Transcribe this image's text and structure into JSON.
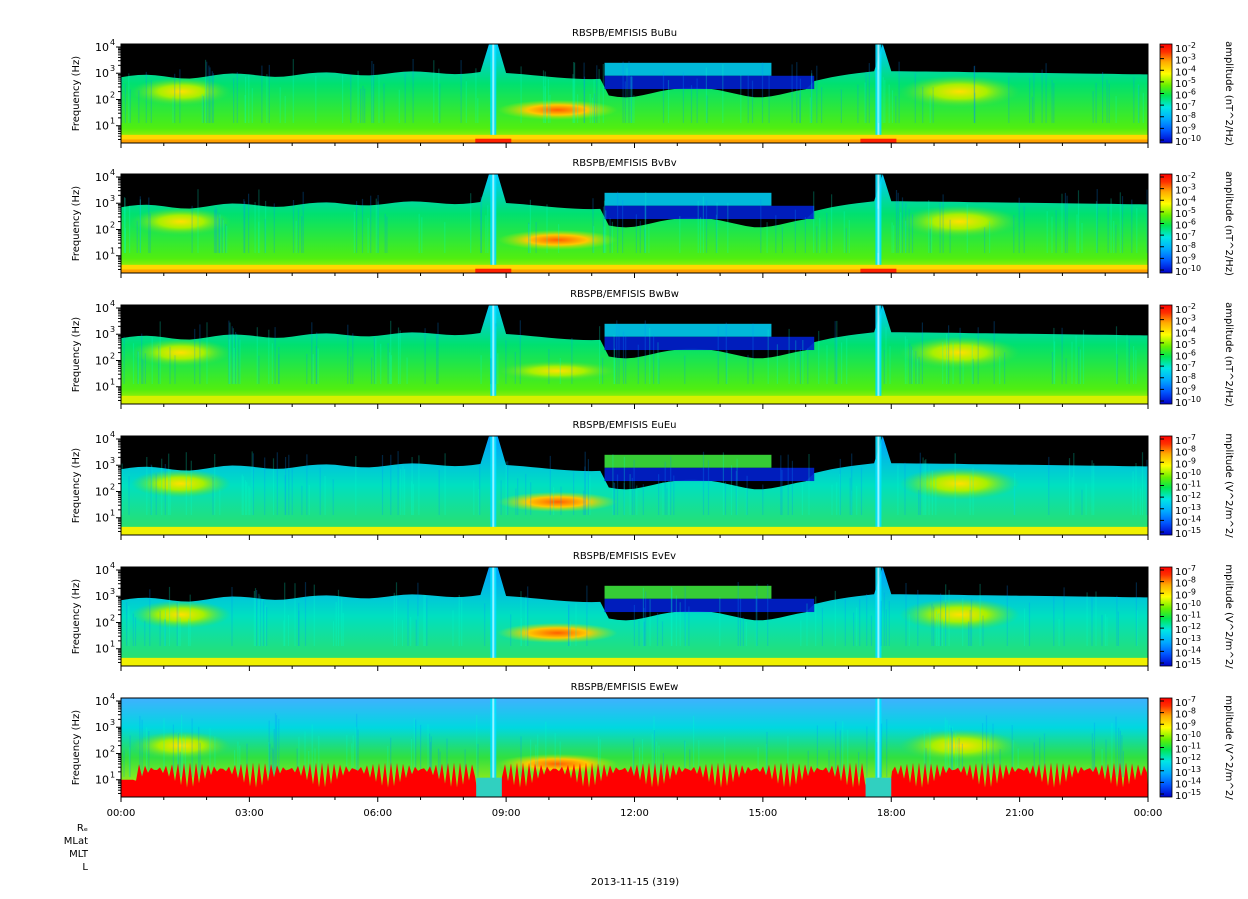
{
  "chart_data": {
    "type": "heatmap",
    "date_label": "2013-11-15 (319)",
    "orbit_labels": [
      "Rₑ",
      "MLat",
      "MLT",
      "L"
    ],
    "x_ticks": [
      "00:00",
      "03:00",
      "06:00",
      "09:00",
      "12:00",
      "15:00",
      "18:00",
      "21:00",
      "00:00"
    ],
    "x_range_hours": [
      0,
      24
    ],
    "grid": false,
    "legend": "colorbar-right",
    "colors": {
      "background": "#000000",
      "scale": [
        "#0000c8",
        "#0055ff",
        "#00aaff",
        "#00e6e6",
        "#00e650",
        "#64f000",
        "#ffff00",
        "#ffaa00",
        "#ff3000",
        "#ff0000"
      ]
    },
    "panels": [
      {
        "title": "RBSPB/EMFISIS  BuBu",
        "ylabel": "Frequency (Hz)",
        "y_scale": "log",
        "y_ticks": [
          "10",
          "10",
          "10",
          "10"
        ],
        "y_tick_exponents": [
          "1",
          "2",
          "3",
          "4"
        ],
        "colorbar_label": "amplitude (nT^2/Hz)",
        "colorbar_ticks": [
          "10",
          "10",
          "10",
          "10",
          "10",
          "10",
          "10",
          "10",
          "10"
        ],
        "colorbar_exponents": [
          "-2",
          "-3",
          "-4",
          "-5",
          "-6",
          "-7",
          "-8",
          "-9",
          "-10"
        ],
        "low_band": "yellow",
        "style": "magnetic"
      },
      {
        "title": "RBSPB/EMFISIS  BvBv",
        "ylabel": "Frequency (Hz)",
        "y_scale": "log",
        "y_ticks": [
          "10",
          "10",
          "10",
          "10"
        ],
        "y_tick_exponents": [
          "1",
          "2",
          "3",
          "4"
        ],
        "colorbar_label": "amplitude (nT^2/Hz)",
        "colorbar_ticks": [
          "10",
          "10",
          "10",
          "10",
          "10",
          "10",
          "10",
          "10",
          "10"
        ],
        "colorbar_exponents": [
          "-2",
          "-3",
          "-4",
          "-5",
          "-6",
          "-7",
          "-8",
          "-9",
          "-10"
        ],
        "low_band": "yellow",
        "style": "magnetic"
      },
      {
        "title": "RBSPB/EMFISIS  BwBw",
        "ylabel": "Frequency (Hz)",
        "y_scale": "log",
        "y_ticks": [
          "10",
          "10",
          "10",
          "10"
        ],
        "y_tick_exponents": [
          "1",
          "2",
          "3",
          "4"
        ],
        "colorbar_label": "amplitude (nT^2/Hz)",
        "colorbar_ticks": [
          "10",
          "10",
          "10",
          "10",
          "10",
          "10",
          "10",
          "10",
          "10"
        ],
        "colorbar_exponents": [
          "-2",
          "-3",
          "-4",
          "-5",
          "-6",
          "-7",
          "-8",
          "-9",
          "-10"
        ],
        "low_band": "yellow-green",
        "style": "magnetic"
      },
      {
        "title": "RBSPB/EMFISIS  EuEu",
        "ylabel": "Frequency (Hz)",
        "y_scale": "log",
        "y_ticks": [
          "10",
          "10",
          "10",
          "10"
        ],
        "y_tick_exponents": [
          "1",
          "2",
          "3",
          "4"
        ],
        "colorbar_label": "mplitude (V^2/m^2/",
        "colorbar_ticks": [
          "10",
          "10",
          "10",
          "10",
          "10",
          "10",
          "10",
          "10",
          "10"
        ],
        "colorbar_exponents": [
          "-7",
          "-8",
          "-9",
          "-10",
          "-11",
          "-12",
          "-13",
          "-14",
          "-15"
        ],
        "low_band": "yellow",
        "style": "electric"
      },
      {
        "title": "RBSPB/EMFISIS  EvEv",
        "ylabel": "Frequency (Hz)",
        "y_scale": "log",
        "y_ticks": [
          "10",
          "10",
          "10",
          "10"
        ],
        "y_tick_exponents": [
          "1",
          "2",
          "3",
          "4"
        ],
        "colorbar_label": "mplitude (V^2/m^2/",
        "colorbar_ticks": [
          "10",
          "10",
          "10",
          "10",
          "10",
          "10",
          "10",
          "10",
          "10"
        ],
        "colorbar_exponents": [
          "-7",
          "-8",
          "-9",
          "-10",
          "-11",
          "-12",
          "-13",
          "-14",
          "-15"
        ],
        "low_band": "yellow",
        "style": "electric"
      },
      {
        "title": "RBSPB/EMFISIS  EwEw",
        "ylabel": "Frequency (Hz)",
        "y_scale": "log",
        "y_ticks": [
          "10",
          "10",
          "10",
          "10"
        ],
        "y_tick_exponents": [
          "1",
          "2",
          "3",
          "4"
        ],
        "colorbar_label": "mplitude (V^2/m^2/",
        "colorbar_ticks": [
          "10",
          "10",
          "10",
          "10",
          "10",
          "10",
          "10",
          "10",
          "10"
        ],
        "colorbar_exponents": [
          "-7",
          "-8",
          "-9",
          "-10",
          "-11",
          "-12",
          "-13",
          "-14",
          "-15"
        ],
        "low_band": "red",
        "style": "ew"
      }
    ]
  }
}
